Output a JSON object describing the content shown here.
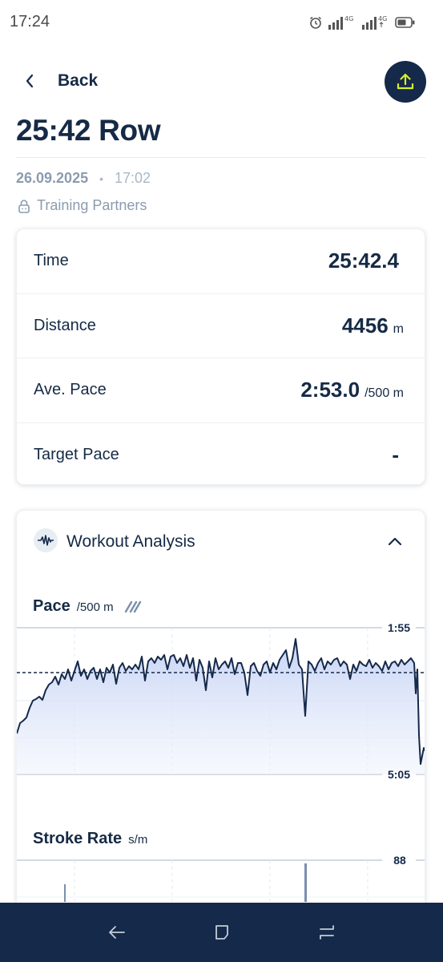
{
  "status_bar": {
    "time": "17:24",
    "network_1": "4G",
    "network_2": "4G"
  },
  "header": {
    "back_label": "Back"
  },
  "workout": {
    "title": "25:42 Row",
    "date": "26.09.2025",
    "separator": "•",
    "time": "17:02",
    "visibility": "Training Partners"
  },
  "summary": [
    {
      "label": "Time",
      "value": "25:42.4",
      "unit": ""
    },
    {
      "label": "Distance",
      "value": "4456",
      "unit": "m"
    },
    {
      "label": "Ave. Pace",
      "value": "2:53.0",
      "unit": "/500 m"
    },
    {
      "label": "Target Pace",
      "value": "-",
      "unit": ""
    }
  ],
  "analysis": {
    "title": "Workout Analysis",
    "pace_chart": {
      "title": "Pace",
      "unit": "/500 m",
      "top_label": "1:55",
      "bottom_label": "5:05"
    },
    "stroke_chart": {
      "title": "Stroke Rate",
      "unit": "s/m",
      "top_label": "88"
    }
  },
  "colors": {
    "primary": "#15294a",
    "accent": "#d7ee2c",
    "muted": "#8b9bb0",
    "chart_line": "#15294a",
    "chart_fill": "#c9d6f5",
    "stroke_bar": "#7a8fad"
  },
  "icons": {
    "back": "chevron-left-icon",
    "upload": "upload-icon",
    "lock": "lock-icon",
    "analysis": "waveform-icon",
    "collapse": "chevron-up-icon",
    "pace_toggle": "slash-toggle-icon",
    "nav_back": "nav-back-icon",
    "nav_home": "nav-home-icon",
    "nav_recents": "nav-recents-icon"
  }
}
